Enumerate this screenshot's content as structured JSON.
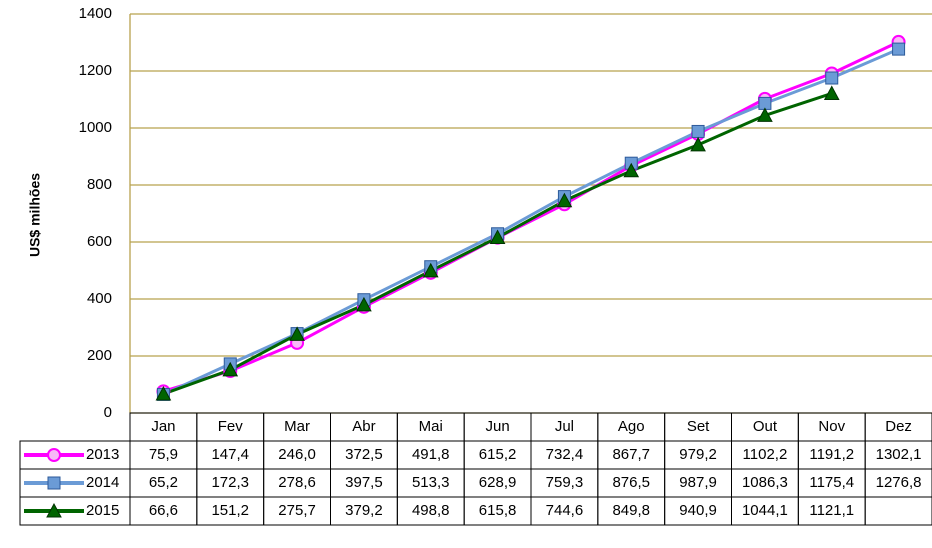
{
  "chart_data": {
    "type": "line",
    "y_label": "US$ milhões",
    "categories": [
      "Jan",
      "Fev",
      "Mar",
      "Abr",
      "Mai",
      "Jun",
      "Jul",
      "Ago",
      "Set",
      "Out",
      "Nov",
      "Dez"
    ],
    "series": [
      {
        "name": "2013",
        "color": "#ff00ff",
        "marker": "circle",
        "values": [
          75.9,
          147.4,
          246.0,
          372.5,
          491.8,
          615.2,
          732.4,
          867.7,
          979.2,
          1102.2,
          1191.2,
          1302.1
        ],
        "value_labels": [
          "75,9",
          "147,4",
          "246,0",
          "372,5",
          "491,8",
          "615,2",
          "732,4",
          "867,7",
          "979,2",
          "1102,2",
          "1191,2",
          "1302,1"
        ]
      },
      {
        "name": "2014",
        "color": "#6b9bd6",
        "marker": "square",
        "values": [
          65.2,
          172.3,
          278.6,
          397.5,
          513.3,
          628.9,
          759.3,
          876.5,
          987.9,
          1086.3,
          1175.4,
          1276.8
        ],
        "value_labels": [
          "65,2",
          "172,3",
          "278,6",
          "397,5",
          "513,3",
          "628,9",
          "759,3",
          "876,5",
          "987,9",
          "1086,3",
          "1175,4",
          "1276,8"
        ]
      },
      {
        "name": "2015",
        "color": "#006400",
        "marker": "triangle",
        "values": [
          66.6,
          151.2,
          275.7,
          379.2,
          498.8,
          615.8,
          744.6,
          849.8,
          940.9,
          1044.1,
          1121.1,
          null
        ],
        "value_labels": [
          "66,6",
          "151,2",
          "275,7",
          "379,2",
          "498,8",
          "615,8",
          "744,6",
          "849,8",
          "940,9",
          "1044,1",
          "1121,1",
          null
        ]
      }
    ],
    "ylim": [
      0,
      1400
    ],
    "yticks": [
      0,
      200,
      400,
      600,
      800,
      1000,
      1200,
      1400
    ],
    "grid": true
  }
}
